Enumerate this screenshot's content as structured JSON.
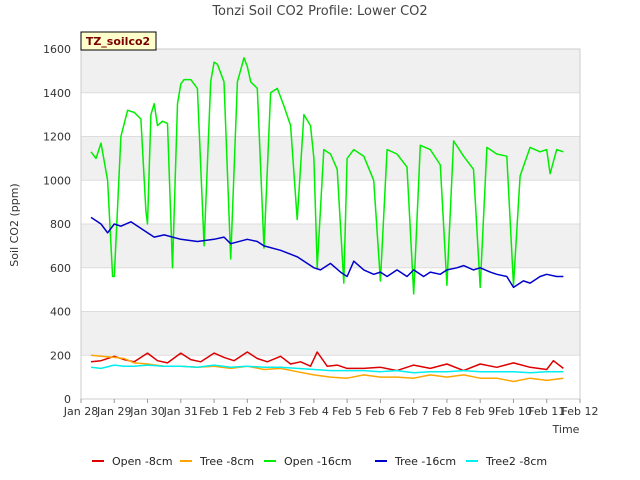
{
  "chart_data": {
    "type": "line",
    "title": "Tonzi Soil CO2 Profile: Lower CO2",
    "site_label": "TZ_soilco2",
    "xlabel": "Time",
    "ylabel": "Soil CO2 (ppm)",
    "ylim": [
      0,
      1600
    ],
    "yticks": [
      0,
      200,
      400,
      600,
      800,
      1000,
      1200,
      1400,
      1600
    ],
    "xlim": [
      0,
      15
    ],
    "xticks": [
      {
        "x": 0,
        "label": "Jan 28"
      },
      {
        "x": 1,
        "label": "Jan 29"
      },
      {
        "x": 2,
        "label": "Jan 30"
      },
      {
        "x": 3,
        "label": "Jan 31"
      },
      {
        "x": 4,
        "label": "Feb 1"
      },
      {
        "x": 5,
        "label": "Feb 2"
      },
      {
        "x": 6,
        "label": "Feb 3"
      },
      {
        "x": 7,
        "label": "Feb 4"
      },
      {
        "x": 8,
        "label": "Feb 5"
      },
      {
        "x": 9,
        "label": "Feb 6"
      },
      {
        "x": 10,
        "label": "Feb 7"
      },
      {
        "x": 11,
        "label": "Feb 8"
      },
      {
        "x": 12,
        "label": "Feb 9"
      },
      {
        "x": 13,
        "label": "Feb 10"
      },
      {
        "x": 14,
        "label": "Feb 11"
      },
      {
        "x": 15,
        "label": "Feb 12"
      }
    ],
    "grid": true,
    "legend_position": "bottom",
    "series": [
      {
        "name": "Open -8cm",
        "color": "#dd0000",
        "x": [
          0.3,
          0.6,
          1.0,
          1.3,
          1.6,
          2.0,
          2.3,
          2.6,
          3.0,
          3.3,
          3.6,
          4.0,
          4.3,
          4.6,
          5.0,
          5.3,
          5.6,
          6.0,
          6.3,
          6.6,
          6.9,
          7.1,
          7.4,
          7.7,
          8.0,
          8.5,
          9.0,
          9.5,
          10.0,
          10.5,
          11.0,
          11.5,
          12.0,
          12.5,
          13.0,
          13.5,
          14.0,
          14.2,
          14.5
        ],
        "y": [
          170,
          175,
          195,
          180,
          170,
          210,
          175,
          165,
          210,
          180,
          170,
          210,
          190,
          175,
          215,
          185,
          170,
          195,
          160,
          170,
          150,
          215,
          150,
          155,
          140,
          140,
          145,
          130,
          155,
          140,
          160,
          130,
          160,
          145,
          165,
          145,
          135,
          175,
          140
        ]
      },
      {
        "name": "Tree -8cm",
        "color": "#ffa500",
        "x": [
          0.3,
          0.6,
          1.0,
          1.3,
          1.6,
          2.0,
          2.5,
          3.0,
          3.5,
          4.0,
          4.5,
          5.0,
          5.5,
          6.0,
          6.5,
          7.0,
          7.5,
          8.0,
          8.5,
          9.0,
          9.5,
          10.0,
          10.5,
          11.0,
          11.5,
          12.0,
          12.5,
          13.0,
          13.5,
          14.0,
          14.5
        ],
        "y": [
          200,
          195,
          190,
          185,
          165,
          160,
          150,
          150,
          145,
          150,
          140,
          150,
          135,
          140,
          125,
          110,
          100,
          95,
          110,
          100,
          100,
          95,
          110,
          100,
          110,
          95,
          95,
          80,
          95,
          85,
          95
        ]
      },
      {
        "name": "Open -16cm",
        "color": "#00ee00",
        "x": [
          0.3,
          0.45,
          0.6,
          0.8,
          0.95,
          1.0,
          1.2,
          1.4,
          1.6,
          1.8,
          1.95,
          2.0,
          2.1,
          2.2,
          2.3,
          2.45,
          2.6,
          2.75,
          2.9,
          3.0,
          3.1,
          3.3,
          3.5,
          3.7,
          3.9,
          4.0,
          4.1,
          4.3,
          4.5,
          4.7,
          4.9,
          5.0,
          5.1,
          5.3,
          5.5,
          5.7,
          5.9,
          6.0,
          6.1,
          6.3,
          6.5,
          6.7,
          6.9,
          7.0,
          7.1,
          7.3,
          7.5,
          7.7,
          7.9,
          8.0,
          8.2,
          8.5,
          8.8,
          9.0,
          9.2,
          9.5,
          9.8,
          10.0,
          10.2,
          10.5,
          10.8,
          11.0,
          11.2,
          11.5,
          11.8,
          12.0,
          12.2,
          12.5,
          12.8,
          13.0,
          13.2,
          13.5,
          13.8,
          14.0,
          14.1,
          14.3,
          14.5
        ],
        "y": [
          1130,
          1100,
          1170,
          1000,
          560,
          560,
          1200,
          1320,
          1310,
          1280,
          860,
          800,
          1300,
          1350,
          1250,
          1270,
          1260,
          600,
          1350,
          1440,
          1460,
          1460,
          1420,
          700,
          1450,
          1540,
          1530,
          1450,
          640,
          1450,
          1560,
          1520,
          1450,
          1420,
          690,
          1400,
          1420,
          1380,
          1340,
          1250,
          820,
          1300,
          1250,
          1100,
          600,
          1140,
          1120,
          1050,
          530,
          1100,
          1140,
          1110,
          1000,
          540,
          1140,
          1120,
          1060,
          480,
          1160,
          1140,
          1070,
          520,
          1180,
          1110,
          1050,
          510,
          1150,
          1120,
          1110,
          520,
          1020,
          1150,
          1130,
          1140,
          1030,
          1140,
          1130
        ]
      },
      {
        "name": "Tree -16cm",
        "color": "#0000cc",
        "x": [
          0.3,
          0.6,
          0.8,
          1.0,
          1.2,
          1.5,
          1.8,
          2.0,
          2.2,
          2.5,
          3.0,
          3.5,
          4.0,
          4.3,
          4.5,
          5.0,
          5.3,
          5.5,
          6.0,
          6.5,
          7.0,
          7.2,
          7.5,
          7.8,
          8.0,
          8.2,
          8.5,
          8.8,
          9.0,
          9.2,
          9.5,
          9.8,
          10.0,
          10.3,
          10.5,
          10.8,
          11.0,
          11.3,
          11.5,
          11.8,
          12.0,
          12.3,
          12.5,
          12.8,
          13.0,
          13.3,
          13.5,
          13.8,
          14.0,
          14.3,
          14.5
        ],
        "y": [
          830,
          800,
          760,
          800,
          790,
          810,
          780,
          760,
          740,
          750,
          730,
          720,
          730,
          740,
          710,
          730,
          720,
          700,
          680,
          650,
          600,
          590,
          620,
          580,
          560,
          630,
          590,
          570,
          580,
          560,
          590,
          560,
          590,
          560,
          580,
          570,
          590,
          600,
          610,
          590,
          600,
          580,
          570,
          560,
          510,
          540,
          530,
          560,
          570,
          560,
          560
        ]
      },
      {
        "name": "Tree2 -8cm",
        "color": "#00eeee",
        "x": [
          0.3,
          0.6,
          1.0,
          1.3,
          1.6,
          2.0,
          2.5,
          3.0,
          3.5,
          4.0,
          4.5,
          5.0,
          5.5,
          6.0,
          6.5,
          7.0,
          7.5,
          8.0,
          8.5,
          9.0,
          9.5,
          10.0,
          10.5,
          11.0,
          11.5,
          12.0,
          12.5,
          13.0,
          13.5,
          14.0,
          14.5
        ],
        "y": [
          145,
          140,
          155,
          150,
          150,
          155,
          150,
          150,
          145,
          155,
          145,
          150,
          145,
          145,
          140,
          135,
          130,
          130,
          130,
          125,
          130,
          120,
          125,
          125,
          130,
          125,
          125,
          125,
          120,
          125,
          125
        ]
      }
    ]
  }
}
